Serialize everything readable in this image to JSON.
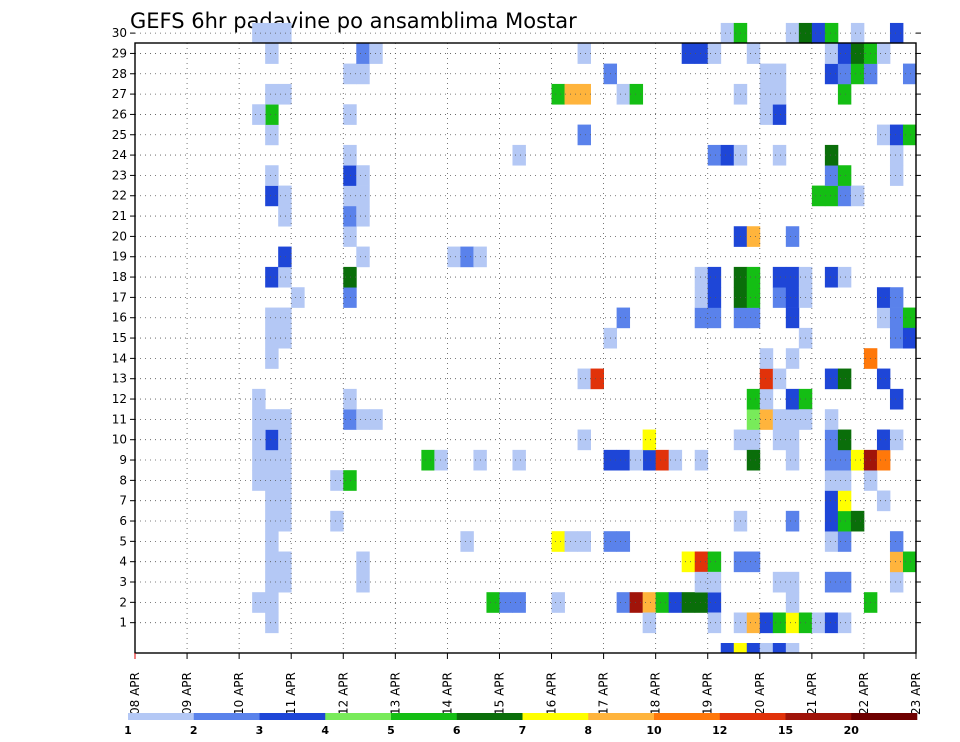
{
  "chart_data": {
    "type": "heatmap",
    "title": "GEFS 6hr padavine po ansamblima Mostar",
    "y_ticks": [
      "1",
      "2",
      "3",
      "4",
      "5",
      "6",
      "7",
      "8",
      "9",
      "10",
      "11",
      "12",
      "13",
      "14",
      "15",
      "16",
      "17",
      "18",
      "19",
      "20",
      "21",
      "22",
      "23",
      "24",
      "25",
      "26",
      "27",
      "28",
      "29",
      "30"
    ],
    "x_ticks": [
      "08 APR",
      "09 APR",
      "10 APR",
      "11 APR",
      "12 APR",
      "13 APR",
      "14 APR",
      "15 APR",
      "16 APR",
      "17 APR",
      "18 APR",
      "19 APR",
      "20 APR",
      "21 APR",
      "22 APR",
      "23 APR"
    ],
    "x_range": [
      "08 APR 00Z",
      "23 APR 00Z"
    ],
    "time_step_hours": 6,
    "legend_labels": [
      "1",
      "2",
      "3",
      "4",
      "5",
      "6",
      "7",
      "8",
      "10",
      "12",
      "15",
      "20"
    ],
    "legend_placement": "bottom",
    "grid": true,
    "colors": [
      "#b4c8f5",
      "#5a82eb",
      "#1e46d7",
      "#78eb5a",
      "#14be14",
      "#0a6e0a",
      "#ffff00",
      "#ffb43c",
      "#ff780a",
      "#e1320a",
      "#a0140a",
      "#6e0000"
    ],
    "cells": [
      [
        10.5,
        1,
        1
      ],
      [
        10.5,
        2,
        1
      ],
      [
        10.5,
        3,
        1
      ],
      [
        10.5,
        4,
        1
      ],
      [
        10.5,
        5,
        1
      ],
      [
        10.5,
        6,
        1
      ],
      [
        10.5,
        7,
        1
      ],
      [
        10.5,
        8,
        1
      ],
      [
        10.5,
        9,
        1
      ],
      [
        10.5,
        10,
        3
      ],
      [
        10.5,
        11,
        1
      ],
      [
        10.5,
        14,
        1
      ],
      [
        10.5,
        15,
        1
      ],
      [
        10.5,
        16,
        1
      ],
      [
        10.5,
        18,
        3
      ],
      [
        10.5,
        22,
        3
      ],
      [
        10.5,
        23,
        1
      ],
      [
        10.5,
        25,
        1
      ],
      [
        10.5,
        26,
        5
      ],
      [
        10.5,
        27,
        1
      ],
      [
        10.5,
        29,
        1
      ],
      [
        10.5,
        30,
        1
      ],
      [
        10.25,
        2,
        1
      ],
      [
        10.25,
        8,
        1
      ],
      [
        10.25,
        9,
        1
      ],
      [
        10.25,
        10,
        1
      ],
      [
        10.25,
        11,
        1
      ],
      [
        10.25,
        12,
        1
      ],
      [
        10.25,
        26,
        1
      ],
      [
        10.25,
        30,
        1
      ],
      [
        10.75,
        3,
        1
      ],
      [
        10.75,
        4,
        1
      ],
      [
        10.75,
        6,
        1
      ],
      [
        10.75,
        7,
        1
      ],
      [
        10.75,
        8,
        1
      ],
      [
        10.75,
        9,
        1
      ],
      [
        10.75,
        10,
        1
      ],
      [
        10.75,
        11,
        1
      ],
      [
        10.75,
        15,
        1
      ],
      [
        10.75,
        16,
        1
      ],
      [
        10.75,
        18,
        1
      ],
      [
        10.75,
        19,
        3
      ],
      [
        10.75,
        21,
        1
      ],
      [
        10.75,
        22,
        1
      ],
      [
        10.75,
        27,
        1
      ],
      [
        10.75,
        30,
        1
      ],
      [
        11.0,
        17,
        1
      ],
      [
        11.75,
        6,
        1
      ],
      [
        11.75,
        8,
        1
      ],
      [
        12.0,
        8,
        5
      ],
      [
        12.0,
        11,
        2
      ],
      [
        12.0,
        12,
        1
      ],
      [
        12.0,
        17,
        2
      ],
      [
        12.0,
        18,
        6
      ],
      [
        12.0,
        20,
        1
      ],
      [
        12.0,
        21,
        2
      ],
      [
        12.0,
        22,
        1
      ],
      [
        12.0,
        23,
        3
      ],
      [
        12.0,
        24,
        1
      ],
      [
        12.0,
        26,
        1
      ],
      [
        12.0,
        28,
        1
      ],
      [
        12.25,
        3,
        1
      ],
      [
        12.25,
        4,
        1
      ],
      [
        12.25,
        11,
        1
      ],
      [
        12.25,
        19,
        1
      ],
      [
        12.25,
        21,
        1
      ],
      [
        12.25,
        22,
        1
      ],
      [
        12.25,
        23,
        1
      ],
      [
        12.25,
        28,
        1
      ],
      [
        12.25,
        29,
        2
      ],
      [
        12.5,
        11,
        1
      ],
      [
        12.5,
        29,
        1
      ],
      [
        13.5,
        9,
        5
      ],
      [
        13.75,
        9,
        1
      ],
      [
        14.0,
        19,
        1
      ],
      [
        14.25,
        19,
        2
      ],
      [
        14.5,
        19,
        1
      ],
      [
        14.25,
        5,
        1
      ],
      [
        14.5,
        9,
        1
      ],
      [
        14.75,
        2,
        5
      ],
      [
        15.0,
        2,
        2
      ],
      [
        15.25,
        2,
        2
      ],
      [
        15.25,
        9,
        1
      ],
      [
        15.25,
        24,
        1
      ],
      [
        16.0,
        2,
        1
      ],
      [
        16.0,
        5,
        7
      ],
      [
        16.0,
        27,
        5
      ],
      [
        16.25,
        5,
        1
      ],
      [
        16.25,
        27,
        8
      ],
      [
        16.5,
        5,
        1
      ],
      [
        16.5,
        27,
        8
      ],
      [
        16.5,
        10,
        1
      ],
      [
        16.5,
        13,
        1
      ],
      [
        16.5,
        25,
        2
      ],
      [
        16.5,
        29,
        1
      ],
      [
        16.75,
        13,
        10
      ],
      [
        17.0,
        5,
        2
      ],
      [
        17.0,
        9,
        3
      ],
      [
        17.0,
        15,
        1
      ],
      [
        17.0,
        28,
        2
      ],
      [
        17.25,
        5,
        2
      ],
      [
        17.25,
        9,
        3
      ],
      [
        17.25,
        16,
        2
      ],
      [
        17.25,
        27,
        1
      ],
      [
        17.5,
        27,
        5
      ],
      [
        17.25,
        2,
        2
      ],
      [
        17.5,
        2,
        11
      ],
      [
        17.75,
        2,
        8
      ],
      [
        18.0,
        2,
        5
      ],
      [
        18.25,
        2,
        3
      ],
      [
        18.5,
        2,
        6
      ],
      [
        18.75,
        2,
        6
      ],
      [
        19.0,
        2,
        3
      ],
      [
        17.75,
        1,
        1
      ],
      [
        17.75,
        9,
        3
      ],
      [
        17.75,
        10,
        7
      ],
      [
        18.0,
        9,
        10
      ],
      [
        17.5,
        9,
        1
      ],
      [
        18.25,
        9,
        1
      ],
      [
        18.75,
        9,
        1
      ],
      [
        18.5,
        4,
        7
      ],
      [
        18.75,
        4,
        10
      ],
      [
        19.0,
        4,
        5
      ],
      [
        18.75,
        3,
        1
      ],
      [
        18.5,
        29,
        3
      ],
      [
        18.75,
        29,
        3
      ],
      [
        19.0,
        29,
        1
      ],
      [
        18.75,
        16,
        2
      ],
      [
        18.75,
        17,
        1
      ],
      [
        18.75,
        18,
        1
      ],
      [
        19.0,
        16,
        2
      ],
      [
        19.0,
        17,
        3
      ],
      [
        19.0,
        18,
        3
      ],
      [
        19.0,
        1,
        1
      ],
      [
        19.0,
        3,
        1
      ],
      [
        19.0,
        24,
        2
      ],
      [
        19.25,
        24,
        3
      ],
      [
        19.5,
        24,
        1
      ],
      [
        19.25,
        0,
        3
      ],
      [
        19.5,
        0,
        7
      ],
      [
        19.75,
        0,
        3
      ],
      [
        20.0,
        0,
        1
      ],
      [
        20.25,
        0,
        3
      ],
      [
        20.5,
        0,
        1
      ],
      [
        19.5,
        1,
        1
      ],
      [
        19.75,
        1,
        8
      ],
      [
        20.0,
        1,
        3
      ],
      [
        20.25,
        1,
        5
      ],
      [
        20.5,
        1,
        7
      ],
      [
        20.75,
        1,
        5
      ],
      [
        19.5,
        4,
        2
      ],
      [
        19.75,
        4,
        2
      ],
      [
        19.5,
        6,
        1
      ],
      [
        19.5,
        10,
        1
      ],
      [
        19.75,
        10,
        1
      ],
      [
        19.75,
        11,
        4
      ],
      [
        20.0,
        11,
        8
      ],
      [
        19.75,
        12,
        5
      ],
      [
        19.75,
        9,
        6
      ],
      [
        19.5,
        16,
        2
      ],
      [
        19.75,
        16,
        2
      ],
      [
        19.5,
        17,
        6
      ],
      [
        19.75,
        17,
        5
      ],
      [
        19.5,
        18,
        6
      ],
      [
        19.75,
        18,
        5
      ],
      [
        19.5,
        20,
        3
      ],
      [
        19.75,
        20,
        8
      ],
      [
        19.25,
        30,
        1
      ],
      [
        19.5,
        30,
        5
      ],
      [
        19.75,
        29,
        1
      ],
      [
        19.5,
        27,
        1
      ],
      [
        20.0,
        12,
        1
      ],
      [
        20.0,
        13,
        10
      ],
      [
        20.25,
        13,
        1
      ],
      [
        20.0,
        14,
        1
      ],
      [
        20.0,
        26,
        1
      ],
      [
        20.25,
        26,
        3
      ],
      [
        20.0,
        27,
        1
      ],
      [
        20.25,
        27,
        1
      ],
      [
        20.0,
        28,
        1
      ],
      [
        20.25,
        28,
        1
      ],
      [
        20.25,
        3,
        1
      ],
      [
        20.5,
        3,
        1
      ],
      [
        20.25,
        10,
        1
      ],
      [
        20.5,
        10,
        1
      ],
      [
        20.25,
        11,
        1
      ],
      [
        20.5,
        11,
        1
      ],
      [
        20.25,
        17,
        2
      ],
      [
        20.5,
        17,
        3
      ],
      [
        20.25,
        18,
        3
      ],
      [
        20.5,
        18,
        3
      ],
      [
        20.5,
        16,
        3
      ],
      [
        20.25,
        24,
        1
      ],
      [
        20.5,
        20,
        2
      ],
      [
        20.5,
        12,
        3
      ],
      [
        20.75,
        12,
        5
      ],
      [
        20.5,
        6,
        2
      ],
      [
        20.5,
        9,
        1
      ],
      [
        20.5,
        14,
        1
      ],
      [
        20.5,
        2,
        1
      ],
      [
        20.5,
        30,
        1
      ],
      [
        20.75,
        30,
        6
      ],
      [
        20.75,
        15,
        1
      ],
      [
        20.75,
        11,
        1
      ],
      [
        20.75,
        17,
        1
      ],
      [
        20.75,
        18,
        1
      ],
      [
        21.0,
        1,
        1
      ],
      [
        21.0,
        22,
        5
      ],
      [
        21.0,
        30,
        3
      ],
      [
        21.25,
        1,
        3
      ],
      [
        21.25,
        3,
        2
      ],
      [
        21.25,
        5,
        1
      ],
      [
        21.25,
        6,
        3
      ],
      [
        21.25,
        7,
        3
      ],
      [
        21.25,
        8,
        1
      ],
      [
        21.25,
        9,
        2
      ],
      [
        21.25,
        10,
        2
      ],
      [
        21.25,
        11,
        1
      ],
      [
        21.25,
        13,
        3
      ],
      [
        21.25,
        18,
        3
      ],
      [
        21.25,
        22,
        5
      ],
      [
        21.25,
        23,
        2
      ],
      [
        21.25,
        24,
        6
      ],
      [
        21.25,
        28,
        3
      ],
      [
        21.25,
        29,
        1
      ],
      [
        21.25,
        30,
        5
      ],
      [
        21.5,
        1,
        1
      ],
      [
        21.5,
        3,
        2
      ],
      [
        21.5,
        5,
        2
      ],
      [
        21.5,
        6,
        5
      ],
      [
        21.5,
        7,
        7
      ],
      [
        21.5,
        8,
        1
      ],
      [
        21.5,
        9,
        2
      ],
      [
        21.5,
        10,
        6
      ],
      [
        21.5,
        13,
        6
      ],
      [
        21.5,
        18,
        1
      ],
      [
        21.5,
        22,
        2
      ],
      [
        21.5,
        23,
        5
      ],
      [
        21.5,
        27,
        5
      ],
      [
        21.5,
        28,
        2
      ],
      [
        21.5,
        29,
        3
      ],
      [
        21.75,
        6,
        6
      ],
      [
        21.75,
        9,
        7
      ],
      [
        21.75,
        22,
        1
      ],
      [
        21.75,
        28,
        5
      ],
      [
        21.75,
        29,
        6
      ],
      [
        21.75,
        30,
        1
      ],
      [
        22.0,
        2,
        5
      ],
      [
        22.0,
        8,
        1
      ],
      [
        22.0,
        9,
        11
      ],
      [
        22.0,
        14,
        9
      ],
      [
        22.0,
        28,
        2
      ],
      [
        22.0,
        29,
        5
      ],
      [
        22.25,
        7,
        1
      ],
      [
        22.25,
        9,
        9
      ],
      [
        22.25,
        10,
        3
      ],
      [
        22.25,
        13,
        3
      ],
      [
        22.25,
        16,
        1
      ],
      [
        22.25,
        17,
        3
      ],
      [
        22.25,
        25,
        1
      ],
      [
        22.25,
        29,
        1
      ],
      [
        22.5,
        3,
        1
      ],
      [
        22.5,
        4,
        8
      ],
      [
        22.5,
        5,
        2
      ],
      [
        22.5,
        10,
        1
      ],
      [
        22.5,
        12,
        3
      ],
      [
        22.5,
        15,
        2
      ],
      [
        22.5,
        16,
        2
      ],
      [
        22.5,
        17,
        2
      ],
      [
        22.5,
        23,
        1
      ],
      [
        22.5,
        24,
        1
      ],
      [
        22.5,
        25,
        3
      ],
      [
        22.5,
        30,
        3
      ],
      [
        22.75,
        4,
        5
      ],
      [
        22.75,
        16,
        5
      ],
      [
        22.75,
        15,
        3
      ],
      [
        22.75,
        25,
        5
      ],
      [
        22.75,
        28,
        2
      ]
    ]
  }
}
